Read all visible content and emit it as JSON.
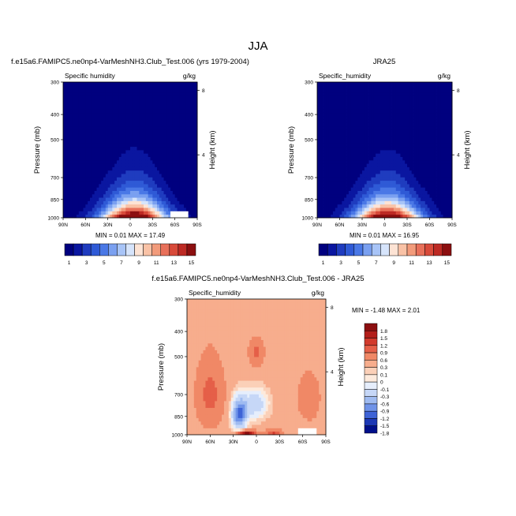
{
  "figure": {
    "title": "JJA"
  },
  "chart_data": [
    {
      "type": "heatmap",
      "title": "f.e15a6.FAMIPC5.ne0np4-VarMeshNH3.Club_Test.006 (yrs 1979-2004)",
      "variable": "Specific humidity",
      "units": "g/kg",
      "ylabel": "Pressure (mb)",
      "ylabel_right": "Height (km)",
      "x_ticks": [
        "90N",
        "60N",
        "30N",
        "0",
        "30S",
        "60S",
        "90S"
      ],
      "y_ticks": [
        "300",
        "400",
        "500",
        "700",
        "850",
        "1000"
      ],
      "y_ticks_right": [
        "8",
        "4"
      ],
      "xlim": [
        90,
        -90
      ],
      "ylim": [
        1000,
        300
      ],
      "min_max_text": "MIN =  0.01  MAX =  17.49",
      "colorbar_labels": [
        "1",
        "3",
        "5",
        "7",
        "9",
        "11",
        "13",
        "15"
      ]
    },
    {
      "type": "heatmap",
      "title": "JRA25",
      "variable": "Specific_humidity",
      "units": "g/kg",
      "ylabel": "Pressure (mb)",
      "ylabel_right": "Height (km)",
      "x_ticks": [
        "90N",
        "60N",
        "30N",
        "0",
        "30S",
        "60S",
        "90S"
      ],
      "y_ticks": [
        "300",
        "400",
        "500",
        "700",
        "850",
        "1000"
      ],
      "y_ticks_right": [
        "8",
        "4"
      ],
      "xlim": [
        90,
        -90
      ],
      "ylim": [
        1000,
        300
      ],
      "min_max_text": "MIN =  0.01  MAX =  16.95",
      "colorbar_labels": [
        "1",
        "3",
        "5",
        "7",
        "9",
        "11",
        "13",
        "15"
      ]
    },
    {
      "type": "heatmap",
      "title": "f.e15a6.FAMIPC5.ne0np4-VarMeshNH3.Club_Test.006 - JRA25",
      "variable": "Specific_humidity",
      "units": "g/kg",
      "ylabel": "Pressure (mb)",
      "ylabel_right": "Height (km)",
      "x_ticks": [
        "90N",
        "60N",
        "30N",
        "0",
        "30S",
        "60S",
        "90S"
      ],
      "y_ticks": [
        "300",
        "400",
        "500",
        "700",
        "850",
        "1000"
      ],
      "y_ticks_right": [
        "8",
        "4"
      ],
      "xlim": [
        90,
        -90
      ],
      "ylim": [
        1000,
        300
      ],
      "min_max_text": "MIN = -1.48  MAX =   2.01",
      "colorbar_labels": [
        "1.8",
        "1.5",
        "1.2",
        "0.9",
        "0.6",
        "0.3",
        "0.1",
        "0",
        "-0.1",
        "-0.3",
        "-0.6",
        "-0.9",
        "-1.2",
        "-1.5",
        "-1.8"
      ]
    }
  ],
  "colors": {
    "humidity_scale": [
      "#00007f",
      "#0a16a0",
      "#1f3cbf",
      "#2f5ad6",
      "#4a78e6",
      "#7aa0f0",
      "#a8c4f7",
      "#d6e4fb",
      "#fde3d4",
      "#f9c2a6",
      "#f29b7b",
      "#e8705a",
      "#d84a3a",
      "#bd2a24",
      "#8c0f10"
    ],
    "diff_scale": [
      "#8c0f10",
      "#b31e1a",
      "#d23a2c",
      "#e55f48",
      "#f08866",
      "#f7ad8d",
      "#fbd0b8",
      "#fdeadc",
      "#e6eefc",
      "#c6d7f7",
      "#9fbbf1",
      "#6f93e8",
      "#3e63d6",
      "#1c38b5",
      "#000f8a"
    ]
  }
}
